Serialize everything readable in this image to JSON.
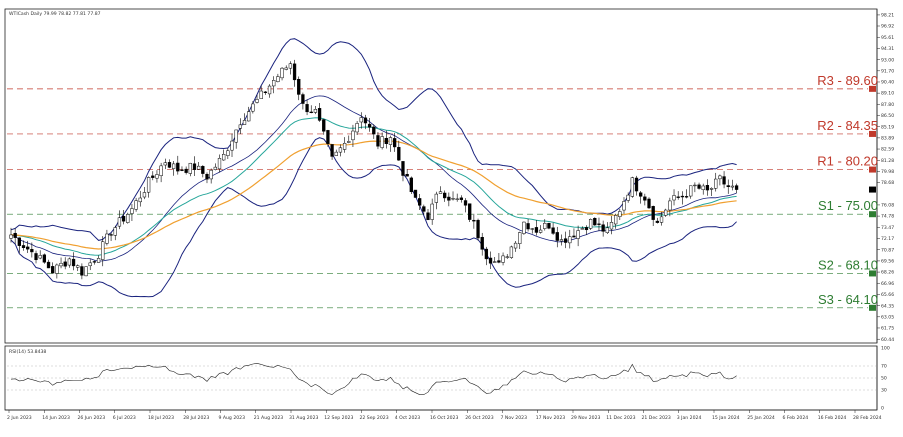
{
  "chart_data": {
    "type": "candlestick",
    "instrument_header": "WTICash Daily 79.99 78.82 77.81 77.87",
    "current_price": 77.87,
    "price_axis": {
      "ylim": [
        60.0,
        98.9
      ],
      "tick_labels": [
        {
          "v": 98.21,
          "t": "98.21"
        },
        {
          "v": 96.92,
          "t": "96.92"
        },
        {
          "v": 95.61,
          "t": "95.61"
        },
        {
          "v": 94.31,
          "t": "94.31"
        },
        {
          "v": 93.0,
          "t": "93.00"
        },
        {
          "v": 91.7,
          "t": "91.70"
        },
        {
          "v": 90.4,
          "t": "90.40"
        },
        {
          "v": 89.1,
          "t": "89.10"
        },
        {
          "v": 87.8,
          "t": "87.80"
        },
        {
          "v": 86.5,
          "t": "86.50"
        },
        {
          "v": 85.19,
          "t": "85.19"
        },
        {
          "v": 83.89,
          "t": "83.89"
        },
        {
          "v": 82.59,
          "t": "82.59"
        },
        {
          "v": 81.28,
          "t": "81.28"
        },
        {
          "v": 79.98,
          "t": "79.98"
        },
        {
          "v": 78.68,
          "t": "78.68"
        },
        {
          "v": 76.08,
          "t": "76.08"
        },
        {
          "v": 74.78,
          "t": "74.78"
        },
        {
          "v": 73.47,
          "t": "73.47"
        },
        {
          "v": 72.17,
          "t": "72.17"
        },
        {
          "v": 70.87,
          "t": "70.87"
        },
        {
          "v": 69.56,
          "t": "69.56"
        },
        {
          "v": 68.26,
          "t": "68.26"
        },
        {
          "v": 66.96,
          "t": "66.96"
        },
        {
          "v": 65.66,
          "t": "65.66"
        },
        {
          "v": 64.35,
          "t": "64.35"
        },
        {
          "v": 63.05,
          "t": "63.05"
        },
        {
          "v": 61.75,
          "t": "61.75"
        },
        {
          "v": 60.44,
          "t": "60.44"
        }
      ]
    },
    "levels": [
      {
        "name": "R3",
        "label": "R3 - 89.60",
        "value": 89.6,
        "color": "#c0392b"
      },
      {
        "name": "R2",
        "label": "R2 - 84.35",
        "value": 84.35,
        "color": "#c0392b"
      },
      {
        "name": "R1",
        "label": "R1 - 80.20",
        "value": 80.2,
        "color": "#c0392b"
      },
      {
        "name": "S1",
        "label": "S1 - 75.00",
        "value": 75.0,
        "color": "#2e7d32"
      },
      {
        "name": "S2",
        "label": "S2 - 68.10",
        "value": 68.1,
        "color": "#2e7d32"
      },
      {
        "name": "S3",
        "label": "S3 - 64.10",
        "value": 64.1,
        "color": "#2e7d32"
      }
    ],
    "x_tick_labels": [
      "2 Jun 2023",
      "14 Jun 2023",
      "26 Jun 2023",
      "6 Jul 2023",
      "18 Jul 2023",
      "28 Jul 2023",
      "9 Aug 2023",
      "21 Aug 2023",
      "31 Aug 2023",
      "12 Sep 2023",
      "22 Sep 2023",
      "4 Oct 2023",
      "16 Oct 2023",
      "26 Oct 2023",
      "7 Nov 2023",
      "17 Nov 2023",
      "29 Nov 2023",
      "11 Dec 2023",
      "21 Dec 2023",
      "3 Jan 2024",
      "15 Jan 2024",
      "25 Jan 2024",
      "6 Feb 2024",
      "16 Feb 2024",
      "28 Feb 2024"
    ],
    "price_path": [
      [
        0,
        72.6
      ],
      [
        6,
        70.2
      ],
      [
        10,
        68.4
      ],
      [
        14,
        69.8
      ],
      [
        17,
        68.3
      ],
      [
        21,
        70.4
      ],
      [
        24,
        73.0
      ],
      [
        29,
        75.6
      ],
      [
        33,
        78.7
      ],
      [
        37,
        81.2
      ],
      [
        40,
        80.2
      ],
      [
        44,
        80.5
      ],
      [
        47,
        79.4
      ],
      [
        51,
        81.8
      ],
      [
        55,
        85.9
      ],
      [
        59,
        88.2
      ],
      [
        63,
        90.6
      ],
      [
        67,
        92.6
      ],
      [
        70,
        87.6
      ],
      [
        73,
        86.9
      ],
      [
        77,
        81.3
      ],
      [
        80,
        83.2
      ],
      [
        84,
        86.6
      ],
      [
        88,
        83.2
      ],
      [
        91,
        84.1
      ],
      [
        94,
        80.0
      ],
      [
        97,
        76.5
      ],
      [
        100,
        74.8
      ],
      [
        103,
        77.9
      ],
      [
        106,
        76.6
      ],
      [
        108,
        76.5
      ],
      [
        111,
        73.8
      ],
      [
        114,
        70.3
      ],
      [
        117,
        69.0
      ],
      [
        120,
        71.2
      ],
      [
        123,
        74.1
      ],
      [
        126,
        73.2
      ],
      [
        129,
        73.8
      ],
      [
        132,
        71.9
      ],
      [
        135,
        72.8
      ],
      [
        139,
        74.1
      ],
      [
        143,
        72.9
      ],
      [
        146,
        75.6
      ],
      [
        149,
        78.8
      ],
      [
        152,
        77.0
      ],
      [
        155,
        73.9
      ],
      [
        158,
        76.5
      ],
      [
        161,
        77.1
      ],
      [
        164,
        78.2
      ],
      [
        167,
        77.6
      ],
      [
        170,
        79.0
      ],
      [
        172,
        78.2
      ],
      [
        174,
        77.87
      ]
    ],
    "indicators": [
      "Bollinger Bands",
      "Moving Average (fast)",
      "Moving Average (slow)"
    ],
    "rsi": {
      "header": "RSI(14) 53.8438",
      "ylim": [
        0,
        100
      ],
      "tick_labels": [
        "100",
        "70",
        "50",
        "30",
        "0"
      ],
      "levels": [
        70,
        50,
        30
      ],
      "current": 53.8438
    },
    "grid": false,
    "legend": "none"
  }
}
